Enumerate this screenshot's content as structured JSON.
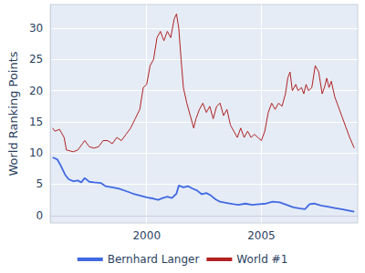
{
  "chart_data": {
    "type": "line",
    "ylabel": "World Ranking Points",
    "xlim": [
      1995.8,
      2009.2
    ],
    "xticks": [
      2000,
      2005
    ],
    "ylim": [
      -1.2,
      33.8
    ],
    "yticks": [
      0,
      5,
      10,
      15,
      20,
      25,
      30
    ],
    "grid": true,
    "legend": "bottom",
    "series": [
      {
        "name": "Bernhard Langer",
        "color": "#4169e1",
        "x": [
          1995.9,
          1996.1,
          1996.25,
          1996.45,
          1996.6,
          1996.8,
          1997.0,
          1997.15,
          1997.3,
          1997.5,
          1997.7,
          1998.0,
          1998.2,
          1998.5,
          1998.8,
          1999.1,
          1999.4,
          1999.7,
          2000.0,
          2000.3,
          2000.5,
          2000.7,
          2000.9,
          2001.1,
          2001.3,
          2001.4,
          2001.6,
          2001.8,
          2002.0,
          2002.2,
          2002.4,
          2002.6,
          2002.8,
          2003.0,
          2003.2,
          2003.5,
          2003.8,
          2004.0,
          2004.3,
          2004.6,
          2004.9,
          2005.2,
          2005.5,
          2005.8,
          2006.1,
          2006.4,
          2006.7,
          2006.9,
          2007.1,
          2007.3,
          2007.6,
          2007.9,
          2008.2,
          2008.5,
          2008.8,
          2009.05
        ],
        "values": [
          9.3,
          9.0,
          8.0,
          6.5,
          5.8,
          5.5,
          5.6,
          5.3,
          6.0,
          5.4,
          5.3,
          5.2,
          4.7,
          4.5,
          4.3,
          3.9,
          3.5,
          3.2,
          2.9,
          2.7,
          2.5,
          2.8,
          3.0,
          2.8,
          3.5,
          4.8,
          4.5,
          4.7,
          4.3,
          4.0,
          3.4,
          3.6,
          3.2,
          2.6,
          2.2,
          2.0,
          1.8,
          1.7,
          1.9,
          1.7,
          1.8,
          1.9,
          2.2,
          2.1,
          1.7,
          1.3,
          1.1,
          1.0,
          1.8,
          1.9,
          1.6,
          1.4,
          1.2,
          1.0,
          0.8,
          0.6
        ]
      },
      {
        "name": "World #1",
        "color": "#b22222",
        "x": [
          1995.9,
          1996.0,
          1996.2,
          1996.4,
          1996.5,
          1996.8,
          1997.0,
          1997.2,
          1997.3,
          1997.5,
          1997.7,
          1997.9,
          1998.1,
          1998.3,
          1998.5,
          1998.7,
          1998.9,
          1999.1,
          1999.3,
          1999.5,
          1999.7,
          1999.85,
          2000.0,
          2000.15,
          2000.3,
          2000.45,
          2000.6,
          2000.75,
          2000.9,
          2001.05,
          2001.2,
          2001.3,
          2001.4,
          2001.5,
          2001.6,
          2001.75,
          2001.9,
          2002.05,
          2002.15,
          2002.3,
          2002.45,
          2002.6,
          2002.75,
          2002.9,
          2003.05,
          2003.2,
          2003.35,
          2003.5,
          2003.65,
          2003.8,
          2003.95,
          2004.1,
          2004.25,
          2004.4,
          2004.55,
          2004.7,
          2004.85,
          2005.0,
          2005.15,
          2005.3,
          2005.45,
          2005.6,
          2005.75,
          2005.9,
          2006.05,
          2006.15,
          2006.25,
          2006.35,
          2006.5,
          2006.6,
          2006.75,
          2006.85,
          2006.95,
          2007.05,
          2007.2,
          2007.35,
          2007.5,
          2007.65,
          2007.75,
          2007.85,
          2007.95,
          2008.05,
          2008.2,
          2008.35,
          2008.5,
          2008.7,
          2008.85,
          2009.05
        ],
        "values": [
          14.0,
          13.5,
          13.8,
          12.5,
          10.5,
          10.2,
          10.5,
          11.5,
          12.0,
          11.0,
          10.8,
          11.0,
          12.0,
          12.0,
          11.5,
          12.5,
          12.0,
          13.0,
          14.0,
          15.5,
          17.0,
          20.5,
          21.0,
          24.0,
          25.0,
          28.5,
          29.5,
          28.0,
          29.5,
          28.5,
          31.5,
          32.3,
          30.0,
          25.0,
          20.5,
          18.0,
          16.0,
          14.0,
          15.5,
          17.0,
          18.0,
          16.5,
          17.5,
          15.5,
          17.5,
          18.0,
          16.0,
          17.0,
          14.5,
          13.5,
          12.5,
          14.0,
          12.5,
          13.5,
          12.5,
          13.0,
          12.5,
          12.0,
          13.5,
          16.5,
          18.0,
          17.0,
          18.0,
          17.5,
          19.5,
          22.0,
          23.0,
          20.0,
          21.0,
          20.0,
          20.5,
          19.5,
          21.0,
          20.0,
          20.5,
          24.0,
          23.0,
          19.5,
          20.5,
          22.0,
          20.5,
          21.5,
          19.0,
          17.5,
          16.0,
          14.0,
          12.5,
          10.8
        ]
      }
    ]
  }
}
